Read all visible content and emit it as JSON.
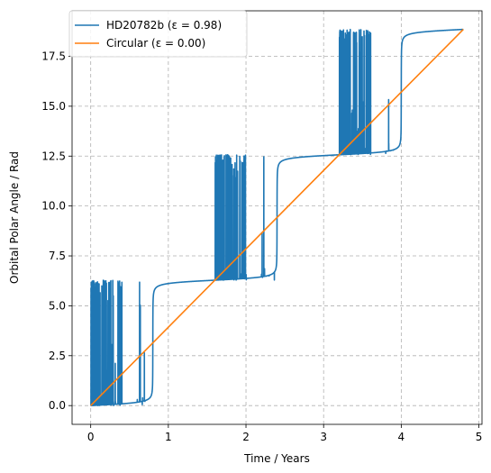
{
  "chart_data": {
    "type": "line",
    "title": "",
    "xlabel": "Time / Years",
    "ylabel": "Orbital Polar Angle / Rad",
    "xlim": [
      -0.24,
      5.04
    ],
    "ylim": [
      -0.94,
      19.78
    ],
    "xticks": [
      "0",
      "1",
      "2",
      "3",
      "4",
      "5"
    ],
    "yticks": [
      "0.0",
      "2.5",
      "5.0",
      "7.5",
      "10.0",
      "12.5",
      "15.0",
      "17.5"
    ],
    "grid": true,
    "legend_position": "top-left",
    "series": [
      {
        "name": "HD20782b (ε = 0.98)",
        "color": "#1f77b4",
        "eccentricity": 0.98,
        "period_years": 1.6,
        "t_max": 4.8
      },
      {
        "name": "Circular (ε = 0.00)",
        "color": "#ff7f0e",
        "x": [
          0,
          4.8
        ],
        "y": [
          0,
          18.85
        ]
      }
    ]
  }
}
